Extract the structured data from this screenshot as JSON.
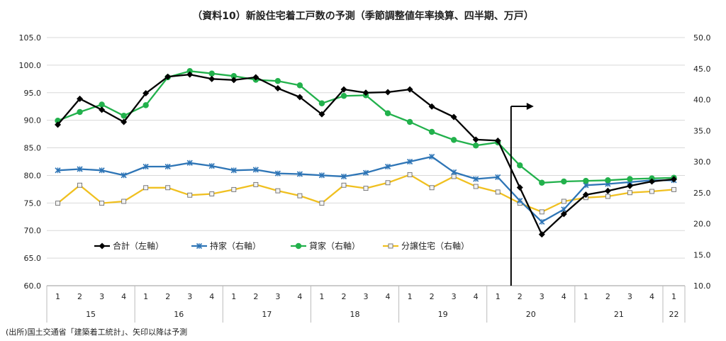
{
  "chart_data": {
    "type": "line",
    "title": "（資料10）新設住宅着工戸数の予測（季節調整値年率換算、四半期、万戸）",
    "source_note": "(出所)国土交通省「建築着工統計」、矢印以降は予測",
    "y_left": {
      "min": 60,
      "max": 105,
      "step": 5,
      "ticks": [
        "60.0",
        "65.0",
        "70.0",
        "75.0",
        "80.0",
        "85.0",
        "90.0",
        "95.0",
        "100.0",
        "105.0"
      ]
    },
    "y_right": {
      "min": 10,
      "max": 50,
      "step": 5,
      "ticks": [
        "10.0",
        "15.0",
        "20.0",
        "25.0",
        "30.0",
        "35.0",
        "40.0",
        "45.0",
        "50.0"
      ]
    },
    "quarters": [
      "1",
      "2",
      "3",
      "4",
      "1",
      "2",
      "3",
      "4",
      "1",
      "2",
      "3",
      "4",
      "1",
      "2",
      "3",
      "4",
      "1",
      "2",
      "3",
      "4",
      "1",
      "2",
      "3",
      "4",
      "1",
      "2",
      "3",
      "4",
      "1"
    ],
    "years": [
      {
        "label": "15",
        "start": 0,
        "count": 4
      },
      {
        "label": "16",
        "start": 4,
        "count": 4
      },
      {
        "label": "17",
        "start": 8,
        "count": 4
      },
      {
        "label": "18",
        "start": 12,
        "count": 4
      },
      {
        "label": "19",
        "start": 16,
        "count": 4
      },
      {
        "label": "20",
        "start": 20,
        "count": 4
      },
      {
        "label": "21",
        "start": 24,
        "count": 4
      },
      {
        "label": "22",
        "start": 28,
        "count": 1
      }
    ],
    "forecast_start_index": 21,
    "legend_position": "lower-left inside plot",
    "series": [
      {
        "name": "合計（左軸）",
        "axis": "left",
        "color": "#000000",
        "marker": "diamond",
        "values": [
          89.2,
          93.9,
          91.9,
          89.7,
          94.9,
          97.9,
          98.3,
          97.5,
          97.3,
          97.8,
          95.8,
          94.2,
          91.1,
          95.6,
          95.0,
          95.1,
          95.6,
          92.5,
          90.6,
          86.5,
          86.3,
          77.8,
          69.3,
          73.0,
          76.5,
          77.2,
          78.1,
          78.9,
          79.3
        ]
      },
      {
        "name": "持家（右軸）",
        "axis": "right",
        "color": "#2E75B6",
        "marker": "x",
        "values": [
          28.6,
          28.8,
          28.6,
          27.8,
          29.2,
          29.2,
          29.8,
          29.3,
          28.6,
          28.7,
          28.1,
          28.0,
          27.8,
          27.6,
          28.2,
          29.2,
          30.0,
          30.8,
          28.3,
          27.2,
          27.5,
          23.7,
          20.3,
          22.3,
          26.2,
          26.4,
          26.7,
          27.0,
          27.0
        ]
      },
      {
        "name": "貸家（右軸）",
        "axis": "right",
        "color": "#22B14C",
        "marker": "circle",
        "values": [
          36.6,
          38.0,
          39.2,
          37.4,
          39.1,
          43.6,
          44.6,
          44.2,
          43.8,
          43.2,
          43.0,
          42.3,
          39.4,
          40.6,
          40.7,
          37.8,
          36.4,
          34.8,
          33.5,
          32.6,
          33.1,
          29.4,
          26.6,
          26.8,
          26.9,
          27.0,
          27.2,
          27.3,
          27.4
        ]
      },
      {
        "name": "分譲住宅（右軸）",
        "axis": "right",
        "color": "#F0C020",
        "marker": "square",
        "values": [
          23.3,
          26.2,
          23.3,
          23.6,
          25.8,
          25.8,
          24.6,
          24.8,
          25.5,
          26.3,
          25.3,
          24.5,
          23.3,
          26.2,
          25.7,
          26.6,
          27.9,
          25.8,
          27.6,
          26.0,
          25.1,
          23.3,
          21.9,
          23.6,
          24.2,
          24.4,
          25.0,
          25.2,
          25.5
        ]
      }
    ]
  }
}
